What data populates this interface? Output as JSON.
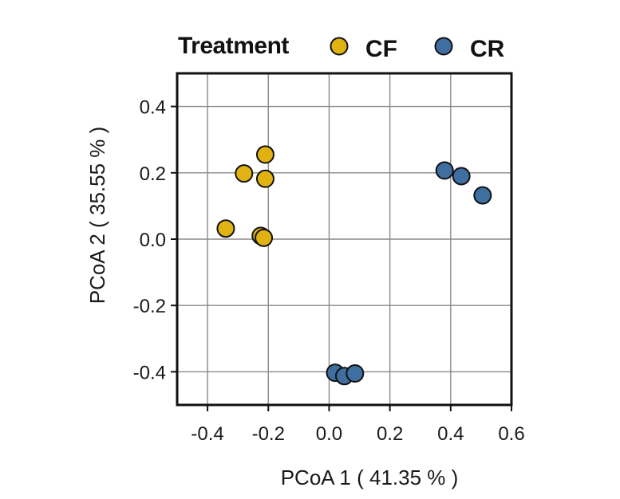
{
  "chart_data": {
    "type": "scatter",
    "title": "",
    "xlabel": "PCoA 1 ( 41.35 % )",
    "ylabel": "PCoA 2 ( 35.55 % )",
    "xlim": [
      -0.5,
      0.6
    ],
    "ylim": [
      -0.5,
      0.5
    ],
    "xticks": [
      -0.4,
      -0.2,
      0.0,
      0.2,
      0.4,
      0.6
    ],
    "yticks": [
      0.4,
      0.2,
      0.0,
      -0.2,
      -0.4
    ],
    "xtick_labels": [
      "-0.4",
      "-0.2",
      "0.0",
      "0.2",
      "0.4",
      "0.6"
    ],
    "ytick_labels": [
      "0.4",
      "0.2",
      "0.0",
      "-0.2",
      "-0.4"
    ],
    "grid": true,
    "legend": {
      "title": "Treatment",
      "placement": "top"
    },
    "series": [
      {
        "name": "CF",
        "color": "#E0B312",
        "points": [
          {
            "x": -0.21,
            "y": 0.255
          },
          {
            "x": -0.28,
            "y": 0.198
          },
          {
            "x": -0.21,
            "y": 0.182
          },
          {
            "x": -0.34,
            "y": 0.032
          },
          {
            "x": -0.225,
            "y": 0.01
          },
          {
            "x": -0.215,
            "y": 0.004
          }
        ]
      },
      {
        "name": "CR",
        "color": "#3F6FA0",
        "points": [
          {
            "x": 0.38,
            "y": 0.207
          },
          {
            "x": 0.435,
            "y": 0.19
          },
          {
            "x": 0.505,
            "y": 0.132
          },
          {
            "x": 0.02,
            "y": -0.403
          },
          {
            "x": 0.05,
            "y": -0.413
          },
          {
            "x": 0.085,
            "y": -0.405
          }
        ]
      }
    ]
  }
}
